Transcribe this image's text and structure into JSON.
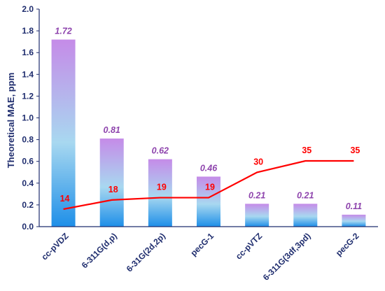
{
  "chart_data": {
    "type": "bar",
    "title": "",
    "xlabel": "",
    "ylabel": "Theoretical MAE, ppm",
    "ylim": [
      0,
      2.0
    ],
    "ytick_labels": [
      "0.0",
      "0.2",
      "0.4",
      "0.6",
      "0.8",
      "1.0",
      "1.2",
      "1.4",
      "1.6",
      "1.8",
      "2.0"
    ],
    "categories": [
      "cc-pVDZ",
      "6-311G(d,p)",
      "6-31G(2d,2p)",
      "pecG-1",
      "cc-pVTZ",
      "6-311G(3df,3pd)",
      "pecG-2"
    ],
    "series": [
      {
        "type": "bar",
        "values": [
          1.72,
          0.81,
          0.62,
          0.46,
          0.21,
          0.21,
          0.11
        ],
        "data_labels": [
          "1.72",
          "0.81",
          "0.62",
          "0.46",
          "0.21",
          "0.21",
          "0.11"
        ],
        "label_color": "#8e44ad"
      },
      {
        "type": "line",
        "values": [
          14,
          18,
          19,
          19,
          30,
          35,
          35
        ],
        "data_labels": [
          "14",
          "18",
          "19",
          "19",
          "30",
          "35",
          "35"
        ],
        "color": "#ff0000",
        "note_axis": "unlabeled secondary scale"
      }
    ],
    "grid": false,
    "legend": "none"
  },
  "colors": {
    "bar_top": "#c58be8",
    "bar_mid": "#a8d8f0",
    "bar_bottom": "#1e8fe8",
    "axis": "#1f2d6e",
    "line": "#ff0000"
  }
}
